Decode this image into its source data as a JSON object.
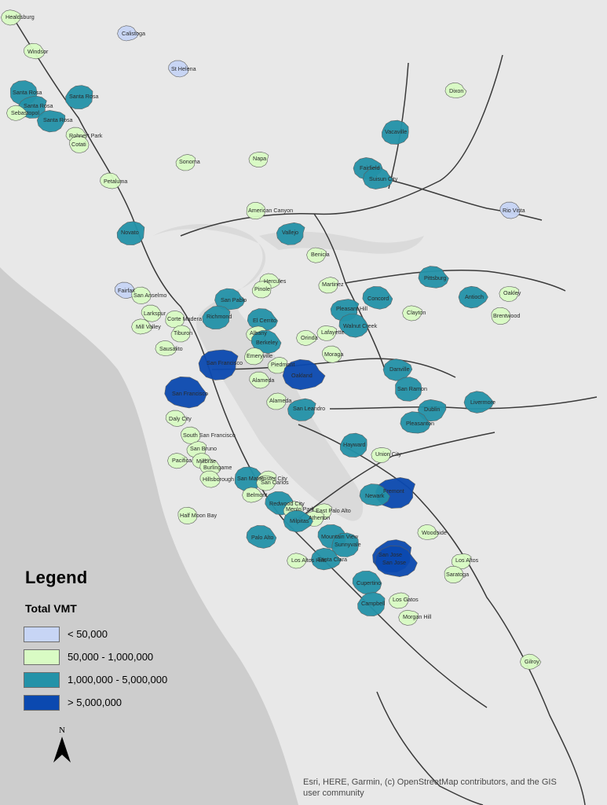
{
  "legend": {
    "title": "Legend",
    "subtitle": "Total VMT",
    "classes": [
      {
        "label": "< 50,000",
        "color": "#c7d5f5"
      },
      {
        "label": "50,000 - 1,000,000",
        "color": "#d9fbc4"
      },
      {
        "label": "1,000,000 - 5,000,000",
        "color": "#2392a8"
      },
      {
        "label": "> 5,000,000",
        "color": "#0b49b0"
      }
    ]
  },
  "north_arrow": {
    "label": "N"
  },
  "attribution": "Esri, HERE, Garmin, (c) OpenStreetMap contributors, and the GIS user community",
  "colors": {
    "water": "#cdcdcd",
    "land": "#e8e8e8",
    "bay": "#dadada",
    "road": "#3a3a3a",
    "boundary": "#5a5a5a"
  },
  "places": [
    {
      "name": "Healdsburg",
      "vmt_class": 1
    },
    {
      "name": "Calistoga",
      "vmt_class": 0
    },
    {
      "name": "Windsor",
      "vmt_class": 1
    },
    {
      "name": "St Helena",
      "vmt_class": 0
    },
    {
      "name": "Santa Rosa",
      "vmt_class": 2
    },
    {
      "name": "Santa Rosa",
      "vmt_class": 2
    },
    {
      "name": "Santa Rosa",
      "vmt_class": 2
    },
    {
      "name": "Santa Rosa",
      "vmt_class": 2
    },
    {
      "name": "Sebastopol",
      "vmt_class": 1
    },
    {
      "name": "Dixon",
      "vmt_class": 1
    },
    {
      "name": "Rohnert Park",
      "vmt_class": 1
    },
    {
      "name": "Cotati",
      "vmt_class": 1
    },
    {
      "name": "Vacaville",
      "vmt_class": 2
    },
    {
      "name": "Sonoma",
      "vmt_class": 1
    },
    {
      "name": "Napa",
      "vmt_class": 1
    },
    {
      "name": "Fairfield",
      "vmt_class": 2
    },
    {
      "name": "Suisun City",
      "vmt_class": 2
    },
    {
      "name": "Petaluma",
      "vmt_class": 1
    },
    {
      "name": "Rio Vista",
      "vmt_class": 0
    },
    {
      "name": "American Canyon",
      "vmt_class": 1
    },
    {
      "name": "Novato",
      "vmt_class": 2
    },
    {
      "name": "Vallejo",
      "vmt_class": 2
    },
    {
      "name": "Benicia",
      "vmt_class": 1
    },
    {
      "name": "Hercules",
      "vmt_class": 1
    },
    {
      "name": "Pittsburg",
      "vmt_class": 2
    },
    {
      "name": "Fairfax",
      "vmt_class": 0
    },
    {
      "name": "San Anselmo",
      "vmt_class": 1
    },
    {
      "name": "Pinole",
      "vmt_class": 1
    },
    {
      "name": "Martinez",
      "vmt_class": 1
    },
    {
      "name": "Oakley",
      "vmt_class": 1
    },
    {
      "name": "Antioch",
      "vmt_class": 2
    },
    {
      "name": "San Pablo",
      "vmt_class": 2
    },
    {
      "name": "Concord",
      "vmt_class": 2
    },
    {
      "name": "Larkspur",
      "vmt_class": 1
    },
    {
      "name": "Corte Madera",
      "vmt_class": 1
    },
    {
      "name": "Richmond",
      "vmt_class": 2
    },
    {
      "name": "Pleasant Hill",
      "vmt_class": 2
    },
    {
      "name": "Clayton",
      "vmt_class": 1
    },
    {
      "name": "Mill Valley",
      "vmt_class": 1
    },
    {
      "name": "El Cerrito",
      "vmt_class": 2
    },
    {
      "name": "Walnut Creek",
      "vmt_class": 2
    },
    {
      "name": "Brentwood",
      "vmt_class": 1
    },
    {
      "name": "Tiburon",
      "vmt_class": 1
    },
    {
      "name": "Albany",
      "vmt_class": 1
    },
    {
      "name": "Lafayette",
      "vmt_class": 1
    },
    {
      "name": "Orinda",
      "vmt_class": 1
    },
    {
      "name": "Sausalito",
      "vmt_class": 1
    },
    {
      "name": "Berkeley",
      "vmt_class": 2
    },
    {
      "name": "Moraga",
      "vmt_class": 1
    },
    {
      "name": "Emeryville",
      "vmt_class": 1
    },
    {
      "name": "Piedmont",
      "vmt_class": 1
    },
    {
      "name": "San Francisco",
      "vmt_class": 3
    },
    {
      "name": "Danville",
      "vmt_class": 2
    },
    {
      "name": "Oakland",
      "vmt_class": 3
    },
    {
      "name": "San Francisco",
      "vmt_class": 3
    },
    {
      "name": "Alameda",
      "vmt_class": 1
    },
    {
      "name": "San Ramon",
      "vmt_class": 2
    },
    {
      "name": "Alameda",
      "vmt_class": 1
    },
    {
      "name": "San Leandro",
      "vmt_class": 2
    },
    {
      "name": "Dublin",
      "vmt_class": 2
    },
    {
      "name": "Livermore",
      "vmt_class": 2
    },
    {
      "name": "Pleasanton",
      "vmt_class": 2
    },
    {
      "name": "Daly City",
      "vmt_class": 1
    },
    {
      "name": "South San Francisco",
      "vmt_class": 1
    },
    {
      "name": "Hayward",
      "vmt_class": 2
    },
    {
      "name": "San Bruno",
      "vmt_class": 1
    },
    {
      "name": "Union City",
      "vmt_class": 1
    },
    {
      "name": "Pacifica",
      "vmt_class": 1
    },
    {
      "name": "Millbrae",
      "vmt_class": 1
    },
    {
      "name": "Burlingame",
      "vmt_class": 1
    },
    {
      "name": "Hillsborough",
      "vmt_class": 1
    },
    {
      "name": "San Mateo",
      "vmt_class": 2
    },
    {
      "name": "Foster City",
      "vmt_class": 1
    },
    {
      "name": "Fremont",
      "vmt_class": 3
    },
    {
      "name": "San Carlos",
      "vmt_class": 1
    },
    {
      "name": "Belmont",
      "vmt_class": 1
    },
    {
      "name": "Newark",
      "vmt_class": 2
    },
    {
      "name": "Redwood City",
      "vmt_class": 2
    },
    {
      "name": "Half Moon Bay",
      "vmt_class": 1
    },
    {
      "name": "Menlo Park",
      "vmt_class": 1
    },
    {
      "name": "East Palo Alto",
      "vmt_class": 1
    },
    {
      "name": "Atherton",
      "vmt_class": 1
    },
    {
      "name": "Milpitas",
      "vmt_class": 2
    },
    {
      "name": "Woodside",
      "vmt_class": 1
    },
    {
      "name": "Palo Alto",
      "vmt_class": 2
    },
    {
      "name": "Mountain View",
      "vmt_class": 2
    },
    {
      "name": "Sunnyvale",
      "vmt_class": 2
    },
    {
      "name": "San Jose",
      "vmt_class": 3
    },
    {
      "name": "Los Altos",
      "vmt_class": 1
    },
    {
      "name": "Los Altos Hills",
      "vmt_class": 1
    },
    {
      "name": "Santa Clara",
      "vmt_class": 2
    },
    {
      "name": "San Jose",
      "vmt_class": 3
    },
    {
      "name": "Cupertino",
      "vmt_class": 2
    },
    {
      "name": "Saratoga",
      "vmt_class": 1
    },
    {
      "name": "Campbell",
      "vmt_class": 2
    },
    {
      "name": "Los Gatos",
      "vmt_class": 1
    },
    {
      "name": "Morgan Hill",
      "vmt_class": 1
    },
    {
      "name": "Gilroy",
      "vmt_class": 1
    }
  ]
}
